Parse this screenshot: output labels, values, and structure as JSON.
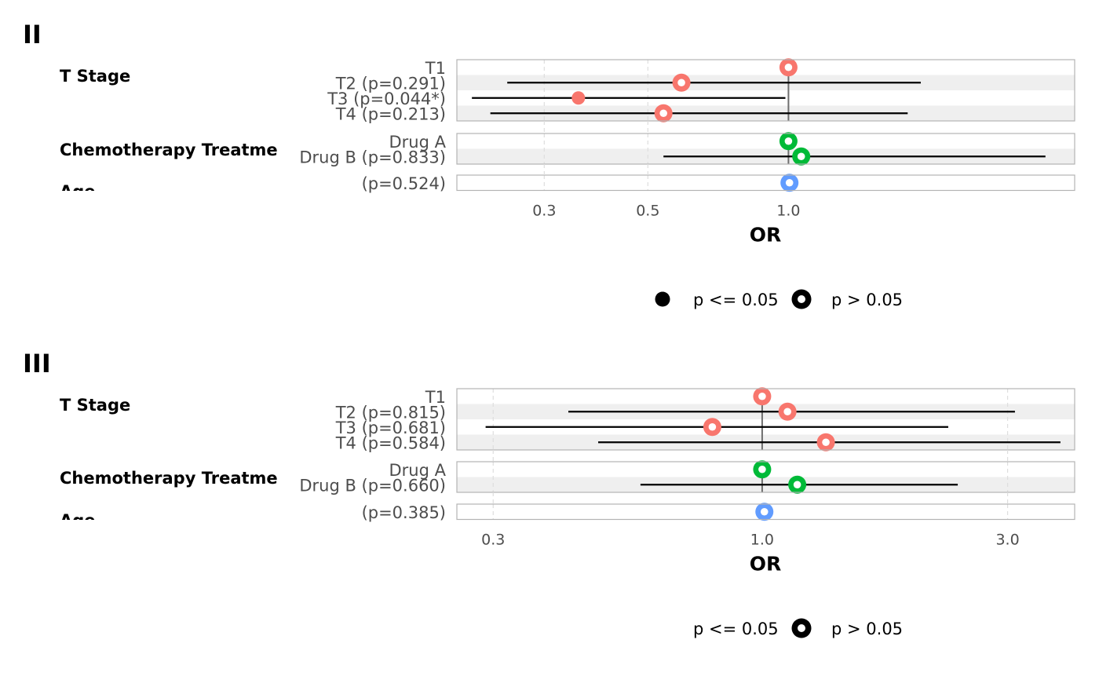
{
  "colors": {
    "T Stage": "#F8766D",
    "Chemotherapy Treatment": "#00BA38",
    "Age": "#619CFF"
  },
  "chart_data": [
    {
      "type": "forest",
      "title": "II",
      "xlabel": "OR",
      "x_scale": "log",
      "xlim": [
        0.195,
        4.1
      ],
      "x_ticks": [
        0.3,
        0.5,
        1.0
      ],
      "x_tick_labels": [
        "0.3",
        "0.5",
        "1.0"
      ],
      "groups": [
        {
          "name": "T Stage",
          "label": "T Stage",
          "rows": [
            {
              "label": "T1",
              "or": 1.0,
              "lower": null,
              "upper": null,
              "sig": false
            },
            {
              "label": "T2 (p=0.291)",
              "or": 0.59,
              "lower": 0.25,
              "upper": 1.92,
              "sig": false
            },
            {
              "label": "T3 (p=0.044*)",
              "or": 0.355,
              "lower": 0.21,
              "upper": 0.985,
              "sig": true
            },
            {
              "label": "T4 (p=0.213)",
              "or": 0.54,
              "lower": 0.23,
              "upper": 1.8,
              "sig": false
            }
          ]
        },
        {
          "name": "Chemotherapy Treatment",
          "label": "Chemotherapy Treatme",
          "rows": [
            {
              "label": "Drug A",
              "or": 1.0,
              "lower": null,
              "upper": null,
              "sig": false
            },
            {
              "label": "Drug B (p=0.833)",
              "or": 1.065,
              "lower": 0.54,
              "upper": 3.55,
              "sig": false
            }
          ]
        },
        {
          "name": "Age",
          "label": "Age",
          "rows": [
            {
              "label": "(p=0.524)",
              "or": 1.005,
              "lower": 0.99,
              "upper": 1.02,
              "sig": false
            }
          ]
        }
      ],
      "legend": [
        {
          "symbol": "filled",
          "label": "p <= 0.05"
        },
        {
          "symbol": "open",
          "label": "p > 0.05"
        }
      ]
    },
    {
      "type": "forest",
      "title": "III",
      "xlabel": "OR",
      "x_scale": "log",
      "xlim": [
        0.255,
        4.05
      ],
      "x_ticks": [
        0.3,
        1.0,
        3.0
      ],
      "x_tick_labels": [
        "0.3",
        "1.0",
        "3.0"
      ],
      "groups": [
        {
          "name": "T Stage",
          "label": "T Stage",
          "rows": [
            {
              "label": "T1",
              "or": 1.0,
              "lower": null,
              "upper": null,
              "sig": false
            },
            {
              "label": "T2 (p=0.815)",
              "or": 1.12,
              "lower": 0.42,
              "upper": 3.1,
              "sig": false
            },
            {
              "label": "T3 (p=0.681)",
              "or": 0.8,
              "lower": 0.29,
              "upper": 2.3,
              "sig": false
            },
            {
              "label": "T4 (p=0.584)",
              "or": 1.33,
              "lower": 0.48,
              "upper": 3.8,
              "sig": false
            }
          ]
        },
        {
          "name": "Chemotherapy Treatment",
          "label": "Chemotherapy Treatme",
          "rows": [
            {
              "label": "Drug A",
              "or": 1.0,
              "lower": null,
              "upper": null,
              "sig": false
            },
            {
              "label": "Drug B (p=0.660)",
              "or": 1.17,
              "lower": 0.58,
              "upper": 2.4,
              "sig": false
            }
          ]
        },
        {
          "name": "Age",
          "label": "Age",
          "rows": [
            {
              "label": "(p=0.385)",
              "or": 1.01,
              "lower": 0.995,
              "upper": 1.025,
              "sig": false
            }
          ]
        }
      ],
      "legend": [
        {
          "symbol": "none",
          "label": "p <= 0.05"
        },
        {
          "symbol": "open",
          "label": "p > 0.05"
        }
      ]
    }
  ]
}
